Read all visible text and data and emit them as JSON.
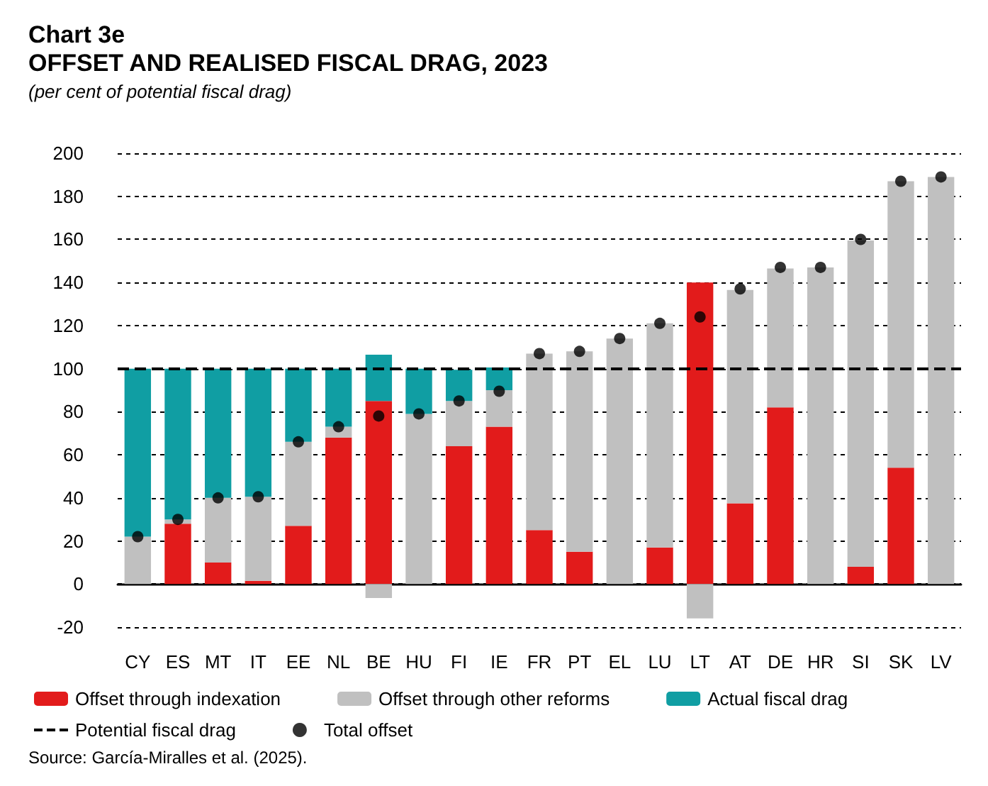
{
  "chart_data": {
    "type": "bar",
    "title": "Chart 3e\nOFFSET AND REALISED FISCAL DRAG, 2023",
    "subtitle": "(per cent of potential fiscal drag)",
    "categories": [
      "CY",
      "ES",
      "MT",
      "IT",
      "EE",
      "NL",
      "BE",
      "HU",
      "FI",
      "IE",
      "FR",
      "PT",
      "EL",
      "LU",
      "LT",
      "AT",
      "DE",
      "HR",
      "SI",
      "SK",
      "LV"
    ],
    "stacked": true,
    "series": [
      {
        "name": "Offset through indexation",
        "color": "#e21b1b",
        "values": [
          0,
          28,
          10,
          1.5,
          27,
          68,
          85,
          0,
          64,
          73,
          25,
          15,
          0,
          17,
          140,
          37.5,
          82,
          0,
          8,
          54,
          0
        ]
      },
      {
        "name": "Offset through other reforms",
        "color": "#c0c0c0",
        "values": [
          22,
          2,
          30,
          39,
          39,
          5,
          -6.5,
          79,
          21,
          17,
          82,
          93,
          114,
          104,
          -16,
          99,
          64.5,
          147,
          151.5,
          133,
          189
        ]
      },
      {
        "name": "Actual fiscal drag",
        "color": "#109ea3",
        "values": [
          78,
          70,
          60,
          59.5,
          34,
          27,
          21.5,
          21,
          14.5,
          10.5,
          0,
          0,
          0,
          0,
          0,
          0,
          0,
          0,
          0,
          0,
          0
        ]
      },
      {
        "name": "Total offset",
        "type": "scatter",
        "color": "#000000",
        "marker": "circle",
        "x": [
          "CY",
          "ES",
          "MT",
          "IT",
          "EE",
          "NL",
          "BE",
          "HU",
          "FI",
          "IE",
          "FR",
          "PT",
          "EL",
          "LU",
          "LT",
          "AT",
          "DE",
          "HR",
          "SI",
          "SK",
          "LV"
        ],
        "values": [
          22,
          30,
          40,
          40.5,
          66,
          73,
          78,
          79,
          85,
          89.5,
          107,
          108,
          114,
          121,
          124,
          137,
          147,
          147,
          160,
          187,
          189
        ]
      }
    ],
    "ref_lines": [
      {
        "axis": "y",
        "value": 100,
        "label": "Potential fiscal drag",
        "color": "#000000",
        "line_style": "dashed"
      }
    ],
    "ylim": [
      -20,
      200
    ],
    "yticks": [
      -20,
      0,
      20,
      40,
      60,
      80,
      100,
      120,
      140,
      160,
      180,
      200
    ],
    "grid": "y",
    "legend": "bottom",
    "annotations": [
      "Source: García-Miralles et al. (2025)."
    ]
  }
}
